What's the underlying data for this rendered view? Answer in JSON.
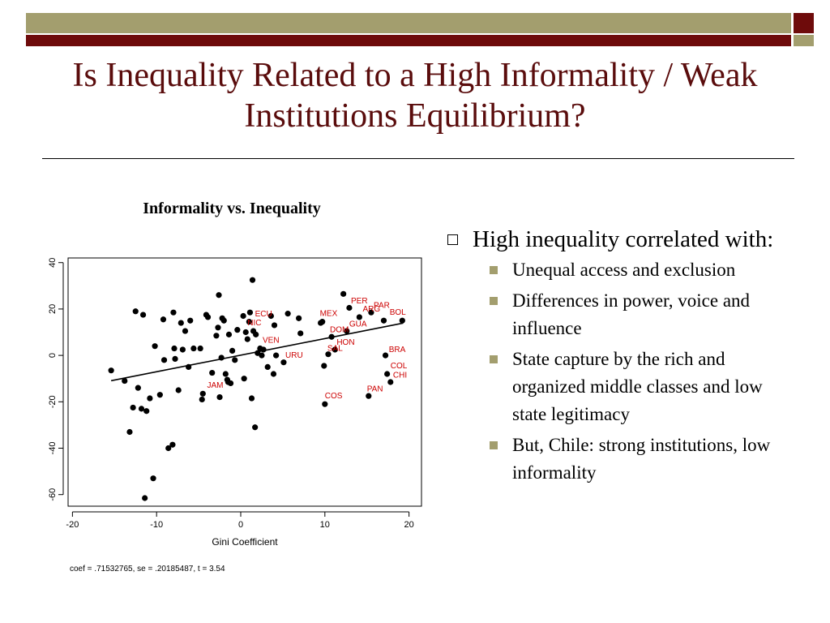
{
  "slide": {
    "title": "Is Inequality Related to a High Informality / Weak Institutions Equilibrium?",
    "colors": {
      "olive": "#a39e6e",
      "maroon": "#6e0b0b",
      "title": "#5a0c0c",
      "label_red": "#cc0000"
    }
  },
  "chart_data": {
    "type": "scatter",
    "title": "Informality vs. Inequality",
    "xlabel": "Gini Coefficient",
    "ylabel": "",
    "xlim": [
      -20,
      20
    ],
    "ylim": [
      -65,
      42
    ],
    "xticks": [
      -20,
      -10,
      0,
      10,
      20
    ],
    "yticks": [
      40,
      20,
      0,
      -20,
      -40,
      -60
    ],
    "fit_line": {
      "slope": 0.71532765,
      "intercept": 0.1,
      "x_range": [
        -15.4,
        19.3
      ]
    },
    "points": [
      {
        "x": -15.4,
        "y": -6.5
      },
      {
        "x": -13.8,
        "y": -11
      },
      {
        "x": -13.2,
        "y": -33
      },
      {
        "x": -12.8,
        "y": -22.5
      },
      {
        "x": -12.5,
        "y": 19
      },
      {
        "x": -12.2,
        "y": -14
      },
      {
        "x": -11.8,
        "y": -23
      },
      {
        "x": -11.6,
        "y": 17.5
      },
      {
        "x": -11.4,
        "y": -61.5
      },
      {
        "x": -11.2,
        "y": -24
      },
      {
        "x": -10.8,
        "y": -18.5
      },
      {
        "x": -10.4,
        "y": -53
      },
      {
        "x": -10.2,
        "y": 4
      },
      {
        "x": -9.6,
        "y": -17
      },
      {
        "x": -9.2,
        "y": 15.5
      },
      {
        "x": -9.1,
        "y": -2
      },
      {
        "x": -8.6,
        "y": -40
      },
      {
        "x": -8.1,
        "y": -38.5
      },
      {
        "x": -8.0,
        "y": 18.5
      },
      {
        "x": -7.9,
        "y": 3
      },
      {
        "x": -7.8,
        "y": -1.5
      },
      {
        "x": -7.4,
        "y": -15
      },
      {
        "x": -7.1,
        "y": 14
      },
      {
        "x": -6.9,
        "y": 2.5
      },
      {
        "x": -6.6,
        "y": 10.5
      },
      {
        "x": -6.2,
        "y": -5
      },
      {
        "x": -6.0,
        "y": 15
      },
      {
        "x": -5.6,
        "y": 3
      },
      {
        "x": -4.8,
        "y": 3
      },
      {
        "x": -4.6,
        "y": -19
      },
      {
        "x": -4.5,
        "y": -16.5
      },
      {
        "x": -4.1,
        "y": 17.5
      },
      {
        "x": -3.9,
        "y": 16.5
      },
      {
        "x": -3.4,
        "y": -7.5
      },
      {
        "x": -2.9,
        "y": 8.5
      },
      {
        "x": -2.7,
        "y": 12
      },
      {
        "x": -2.6,
        "y": 26
      },
      {
        "x": -2.5,
        "y": -18
      },
      {
        "x": -2.3,
        "y": -1
      },
      {
        "x": -2.2,
        "y": 16
      },
      {
        "x": -2.0,
        "y": 15
      },
      {
        "x": -1.8,
        "y": -8
      },
      {
        "x": -1.6,
        "y": -10.5
      },
      {
        "x": -1.5,
        "y": -11.5
      },
      {
        "x": -1.4,
        "y": 9
      },
      {
        "x": -1.2,
        "y": -12
      },
      {
        "x": -1.0,
        "y": 2
      },
      {
        "x": -0.7,
        "y": -2
      },
      {
        "x": -0.4,
        "y": 11
      },
      {
        "x": 0.3,
        "y": 17
      },
      {
        "x": 0.4,
        "y": -10
      },
      {
        "x": 0.6,
        "y": 10
      },
      {
        "x": 0.8,
        "y": 7
      },
      {
        "x": 1.0,
        "y": 14.5
      },
      {
        "x": 1.1,
        "y": 18.5
      },
      {
        "x": 1.3,
        "y": -18.5
      },
      {
        "x": 1.4,
        "y": 32.5
      },
      {
        "x": 1.5,
        "y": 10.5
      },
      {
        "x": 1.7,
        "y": -31
      },
      {
        "x": 1.8,
        "y": 9
      },
      {
        "x": 2.0,
        "y": 1
      },
      {
        "x": 2.3,
        "y": 3
      },
      {
        "x": 2.5,
        "y": 0
      },
      {
        "x": 2.7,
        "y": 2.5
      },
      {
        "x": 3.2,
        "y": -5
      },
      {
        "x": 3.6,
        "y": 17
      },
      {
        "x": 3.9,
        "y": -8
      },
      {
        "x": 4.0,
        "y": 13
      },
      {
        "x": 4.2,
        "y": 0
      },
      {
        "x": 5.1,
        "y": -3
      },
      {
        "x": 5.6,
        "y": 18
      },
      {
        "x": 6.9,
        "y": 16
      },
      {
        "x": 7.1,
        "y": 9.5
      },
      {
        "x": 9.5,
        "y": 14
      },
      {
        "x": 9.7,
        "y": 14.5
      },
      {
        "x": 9.9,
        "y": -4.5
      },
      {
        "x": 10.0,
        "y": -21
      },
      {
        "x": 10.4,
        "y": 0.5
      },
      {
        "x": 10.8,
        "y": 8
      },
      {
        "x": 11.2,
        "y": 2.5
      },
      {
        "x": 12.2,
        "y": 26.5
      },
      {
        "x": 12.6,
        "y": 10.5
      },
      {
        "x": 12.9,
        "y": 20.5
      },
      {
        "x": 14.1,
        "y": 16.5
      },
      {
        "x": 15.2,
        "y": -17.5
      },
      {
        "x": 15.5,
        "y": 18.5
      },
      {
        "x": 17.0,
        "y": 15
      },
      {
        "x": 17.2,
        "y": 0
      },
      {
        "x": 17.4,
        "y": -8
      },
      {
        "x": 17.8,
        "y": -11.5
      },
      {
        "x": 19.2,
        "y": 15
      }
    ],
    "labels": [
      {
        "text": "PER",
        "x": 13.1,
        "y": 22.5
      },
      {
        "text": "ARG",
        "x": 14.5,
        "y": 19
      },
      {
        "text": "PAR",
        "x": 15.8,
        "y": 20.5
      },
      {
        "text": "BOL",
        "x": 17.7,
        "y": 17.5
      },
      {
        "text": "MEX",
        "x": 9.4,
        "y": 17
      },
      {
        "text": "ECU",
        "x": 1.7,
        "y": 16.8
      },
      {
        "text": "NIC",
        "x": 0.8,
        "y": 13
      },
      {
        "text": "DOM",
        "x": 10.6,
        "y": 10
      },
      {
        "text": "GUA",
        "x": 12.9,
        "y": 12.5
      },
      {
        "text": "VEN",
        "x": 2.6,
        "y": 5.5
      },
      {
        "text": "HON",
        "x": 11.4,
        "y": 4.5
      },
      {
        "text": "SAL",
        "x": 10.3,
        "y": 2
      },
      {
        "text": "URU",
        "x": 5.3,
        "y": -1
      },
      {
        "text": "BRA",
        "x": 17.6,
        "y": 1.5
      },
      {
        "text": "COL",
        "x": 17.8,
        "y": -5.5
      },
      {
        "text": "CHI",
        "x": 18.1,
        "y": -9.5
      },
      {
        "text": "JAM",
        "x": -4.0,
        "y": -14
      },
      {
        "text": "PAN",
        "x": 15.0,
        "y": -15.5
      },
      {
        "text": "COS",
        "x": 10.0,
        "y": -18.5
      }
    ],
    "note": "coef = .71532765, se = .20185487, t = 3.54"
  },
  "bullets": {
    "main": "High inequality correlated with:",
    "sub": [
      "Unequal access and exclusion",
      "Differences in power, voice and influence",
      "State capture by the rich and organized middle classes and low state legitimacy",
      "But, Chile: strong institutions, low informality"
    ]
  }
}
